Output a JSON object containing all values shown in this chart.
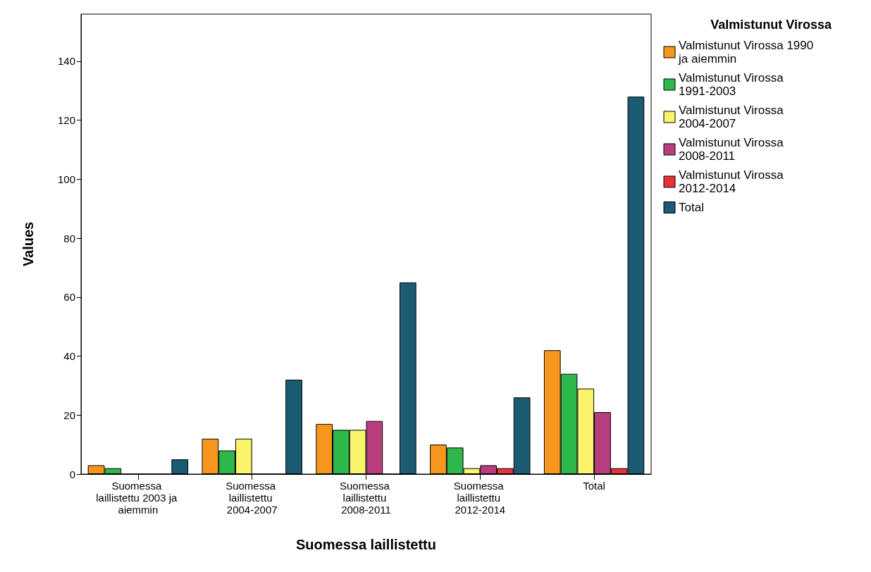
{
  "chart_data": {
    "type": "bar",
    "xlabel": "Suomessa laillistettu",
    "ylabel": "Values",
    "legend_title": "Valmistunut Virossa",
    "legend": "right",
    "categories": [
      "Suomessa laillistettu 2003 ja aiemmin",
      "Suomessa laillistettu 2004-2007",
      "Suomessa laillistettu 2008-2011",
      "Suomessa laillistettu 2012-2014",
      "Total"
    ],
    "series": [
      {
        "name": "Valmistunut Virossa 1990 ja aiemmin",
        "color": "#f7961d",
        "values": [
          3,
          12,
          17,
          10,
          42
        ]
      },
      {
        "name": "Valmistunut Virossa 1991-2003",
        "color": "#2fb84a",
        "values": [
          2,
          8,
          15,
          9,
          34
        ]
      },
      {
        "name": "Valmistunut Virossa 2004-2007",
        "color": "#f9f46c",
        "values": [
          0,
          12,
          15,
          2,
          29
        ]
      },
      {
        "name": "Valmistunut Virossa 2008-2011",
        "color": "#b83e7e",
        "values": [
          0,
          0,
          18,
          3,
          21
        ]
      },
      {
        "name": "Valmistunut Virossa 2012-2014",
        "color": "#ea3138",
        "values": [
          0,
          0,
          0,
          2,
          2
        ]
      },
      {
        "name": "Total",
        "color": "#1c5b74",
        "values": [
          5,
          32,
          65,
          26,
          128
        ]
      }
    ],
    "ylim": [
      0,
      156
    ],
    "yticks": [
      0,
      20,
      40,
      60,
      80,
      100,
      120,
      140
    ],
    "grid": false
  }
}
